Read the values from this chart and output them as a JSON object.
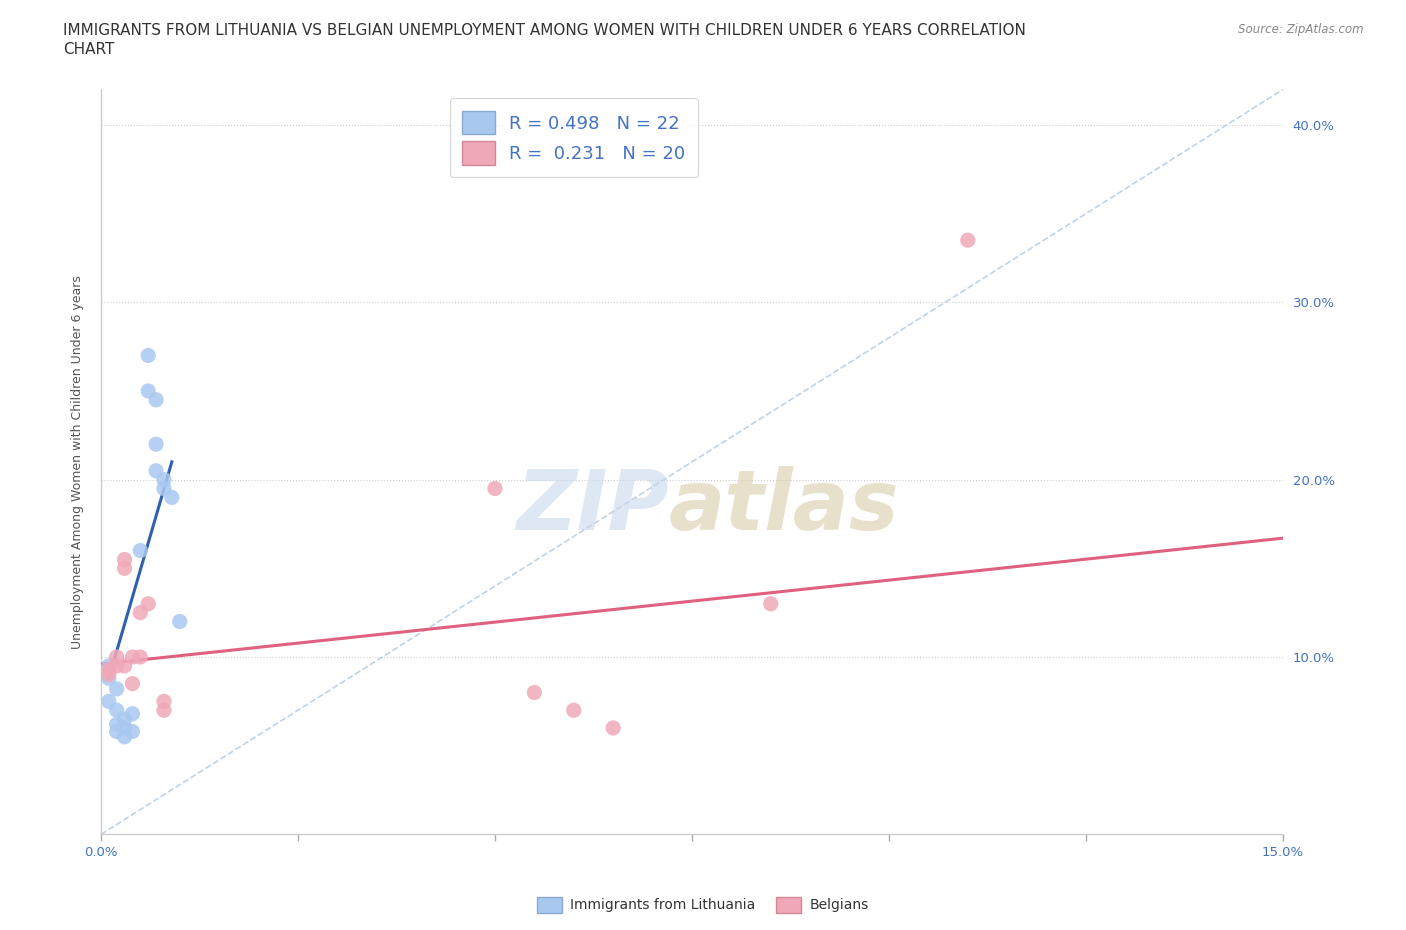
{
  "title_line1": "IMMIGRANTS FROM LITHUANIA VS BELGIAN UNEMPLOYMENT AMONG WOMEN WITH CHILDREN UNDER 6 YEARS CORRELATION",
  "title_line2": "CHART",
  "source_text": "Source: ZipAtlas.com",
  "ylabel": "Unemployment Among Women with Children Under 6 years",
  "xlim": [
    0.0,
    0.15
  ],
  "ylim": [
    0.0,
    0.42
  ],
  "watermark_zip": "ZIP",
  "watermark_atlas": "atlas",
  "blue_color": "#a8c8f0",
  "pink_color": "#f0a8b8",
  "blue_line_color": "#3060b0",
  "pink_line_color": "#e06080",
  "diag_line_color": "#b0c8e0",
  "blue_scatter": [
    [
      0.001,
      0.088
    ],
    [
      0.001,
      0.095
    ],
    [
      0.001,
      0.075
    ],
    [
      0.002,
      0.082
    ],
    [
      0.002,
      0.07
    ],
    [
      0.002,
      0.062
    ],
    [
      0.002,
      0.058
    ],
    [
      0.003,
      0.065
    ],
    [
      0.003,
      0.06
    ],
    [
      0.003,
      0.055
    ],
    [
      0.004,
      0.068
    ],
    [
      0.004,
      0.058
    ],
    [
      0.005,
      0.16
    ],
    [
      0.006,
      0.27
    ],
    [
      0.006,
      0.25
    ],
    [
      0.007,
      0.245
    ],
    [
      0.007,
      0.22
    ],
    [
      0.007,
      0.205
    ],
    [
      0.008,
      0.2
    ],
    [
      0.008,
      0.195
    ],
    [
      0.009,
      0.19
    ],
    [
      0.01,
      0.12
    ]
  ],
  "pink_scatter": [
    [
      0.001,
      0.093
    ],
    [
      0.001,
      0.09
    ],
    [
      0.002,
      0.1
    ],
    [
      0.002,
      0.095
    ],
    [
      0.003,
      0.155
    ],
    [
      0.003,
      0.15
    ],
    [
      0.003,
      0.095
    ],
    [
      0.004,
      0.1
    ],
    [
      0.004,
      0.085
    ],
    [
      0.005,
      0.125
    ],
    [
      0.005,
      0.1
    ],
    [
      0.006,
      0.13
    ],
    [
      0.008,
      0.07
    ],
    [
      0.008,
      0.075
    ],
    [
      0.05,
      0.195
    ],
    [
      0.055,
      0.08
    ],
    [
      0.06,
      0.07
    ],
    [
      0.065,
      0.06
    ],
    [
      0.085,
      0.13
    ],
    [
      0.11,
      0.335
    ]
  ],
  "blue_trend_x": [
    0.001,
    0.009
  ],
  "blue_trend_y": [
    0.088,
    0.21
  ],
  "pink_trend_x": [
    0.0,
    0.15
  ],
  "pink_trend_y": [
    0.096,
    0.167
  ],
  "diag_trend_x": [
    0.0,
    0.15
  ],
  "diag_trend_y": [
    0.0,
    0.42
  ],
  "title_fontsize": 11,
  "label_fontsize": 9,
  "tick_fontsize": 9.5,
  "legend_fontsize": 13
}
